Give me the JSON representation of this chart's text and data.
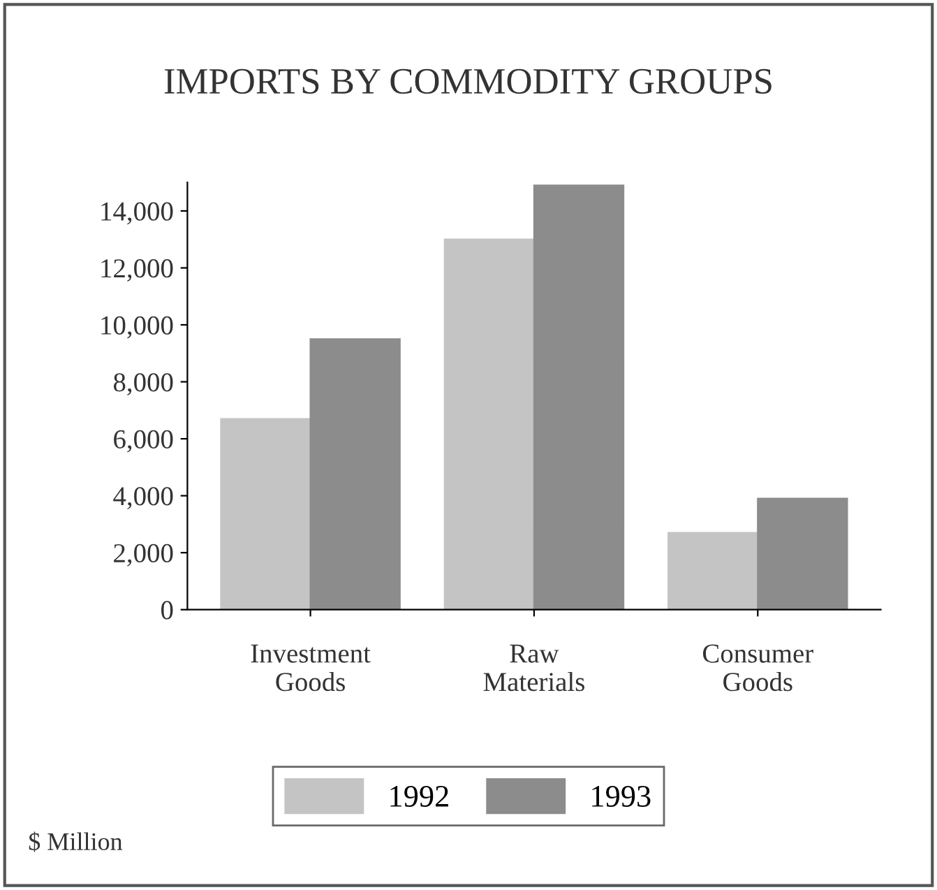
{
  "chart_data": {
    "type": "bar",
    "title": "IMPORTS BY COMMODITY GROUPS",
    "categories": [
      "Investment\nGoods",
      "Raw\nMaterials",
      "Consumer\nGoods"
    ],
    "series": [
      {
        "name": "1992",
        "color": "#c4c4c4",
        "values": [
          6700,
          13000,
          2700
        ]
      },
      {
        "name": "1993",
        "color": "#8c8c8c",
        "values": [
          9500,
          14900,
          3900
        ]
      }
    ],
    "ylim": [
      0,
      15000
    ],
    "yticks": [
      0,
      {
        "value": 2000,
        "label": "2,000"
      },
      {
        "value": 4000,
        "label": "4,000"
      },
      {
        "value": 6000,
        "label": "6,000"
      },
      {
        "value": 8000,
        "label": "8,000"
      },
      {
        "value": 10000,
        "label": "10,000"
      },
      {
        "value": 12000,
        "label": "12,000"
      },
      {
        "value": 14000,
        "label": "14,000"
      }
    ],
    "grid": false,
    "legend": "bottom",
    "annotations": [
      "$ Million"
    ]
  }
}
